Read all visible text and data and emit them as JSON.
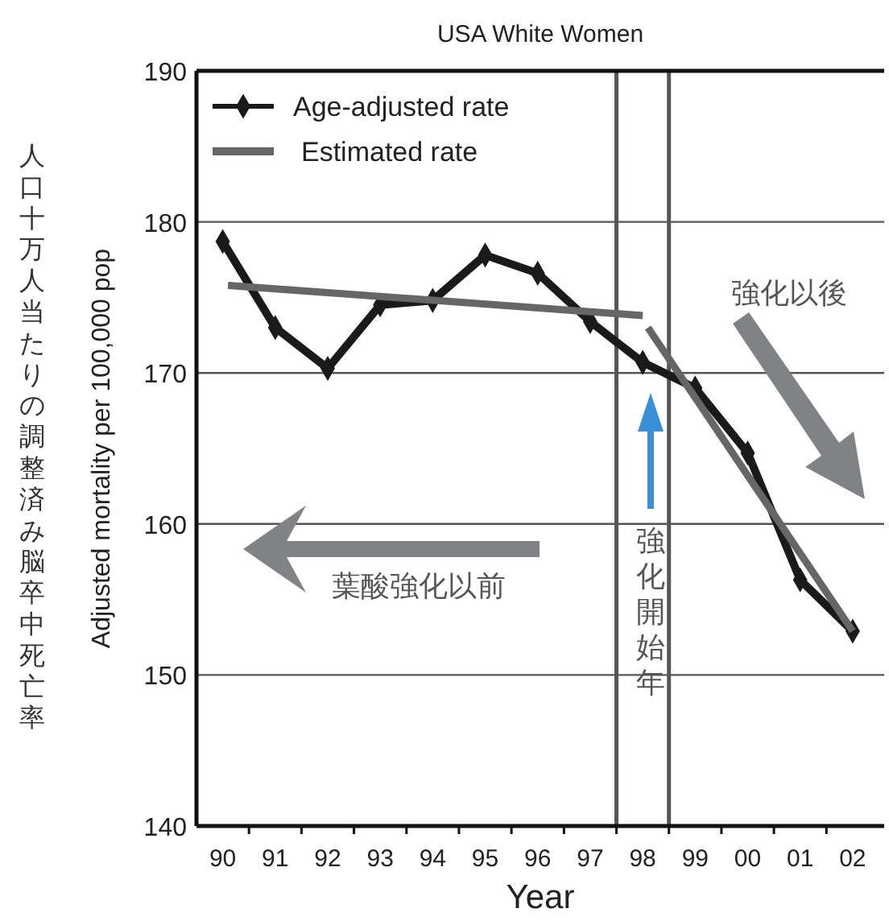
{
  "chart_data": {
    "type": "line",
    "title": "USA White Women",
    "xlabel": "Year",
    "ylabel": "Adjusted mortality per 100,000 pop",
    "xlim": [
      1989.5,
      2002.6
    ],
    "ylim": [
      140,
      190
    ],
    "yticks": [
      140,
      150,
      160,
      170,
      180,
      190
    ],
    "xticks": [
      {
        "value": 1990,
        "label": "90"
      },
      {
        "value": 1991,
        "label": "91"
      },
      {
        "value": 1992,
        "label": "92"
      },
      {
        "value": 1993,
        "label": "93"
      },
      {
        "value": 1994,
        "label": "94"
      },
      {
        "value": 1995,
        "label": "95"
      },
      {
        "value": 1996,
        "label": "96"
      },
      {
        "value": 1997,
        "label": "97"
      },
      {
        "value": 1998,
        "label": "98"
      },
      {
        "value": 1999,
        "label": "99"
      },
      {
        "value": 2000,
        "label": "00"
      },
      {
        "value": 2001,
        "label": "01"
      },
      {
        "value": 2002,
        "label": "02"
      },
      {
        "value": 1990.5,
        "label": null
      },
      {
        "value": 1991.5,
        "label": null
      },
      {
        "value": 1992.5,
        "label": null
      },
      {
        "value": 1993.5,
        "label": null
      },
      {
        "value": 1994.5,
        "label": null
      },
      {
        "value": 1995.5,
        "label": null
      },
      {
        "value": 1996.5,
        "label": null
      },
      {
        "value": 1997.5,
        "label": null
      },
      {
        "value": 1998.5,
        "label": null
      },
      {
        "value": 1999.5,
        "label": null
      },
      {
        "value": 2000.5,
        "label": null
      },
      {
        "value": 2001.5,
        "label": null
      }
    ],
    "grid": "y",
    "legend": "top left",
    "line_style": "solid",
    "series": [
      {
        "name": "Age-adjusted rate",
        "color": "#1a1a1a",
        "marker": "diamond",
        "x": [
          1990,
          1991,
          1992,
          1993,
          1994,
          1995,
          1996,
          1997,
          1998,
          1999,
          2000,
          2001,
          2002
        ],
        "values": [
          178.7,
          173.0,
          170.3,
          174.5,
          174.8,
          177.8,
          176.6,
          173.4,
          170.7,
          169.0,
          164.7,
          156.3,
          152.9
        ]
      },
      {
        "name": "Estimated rate",
        "color": "#666666",
        "marker": "none",
        "x": [
          1990.1,
          1998.0,
          1998.05,
          1998.1,
          2002.0
        ],
        "values": [
          175.8,
          173.8,
          null,
          173.0,
          152.9
        ]
      }
    ],
    "ref_lines": [
      {
        "axis": "x",
        "value": 1997.5,
        "color": "#555555"
      },
      {
        "axis": "x",
        "value": 1998.5,
        "color": "#555555"
      }
    ],
    "annotations": [
      "強化以後",
      "葉酸強化以前",
      "強化開始年",
      "人口十万人当たりの調整済み脳卒中死亡率"
    ]
  }
}
